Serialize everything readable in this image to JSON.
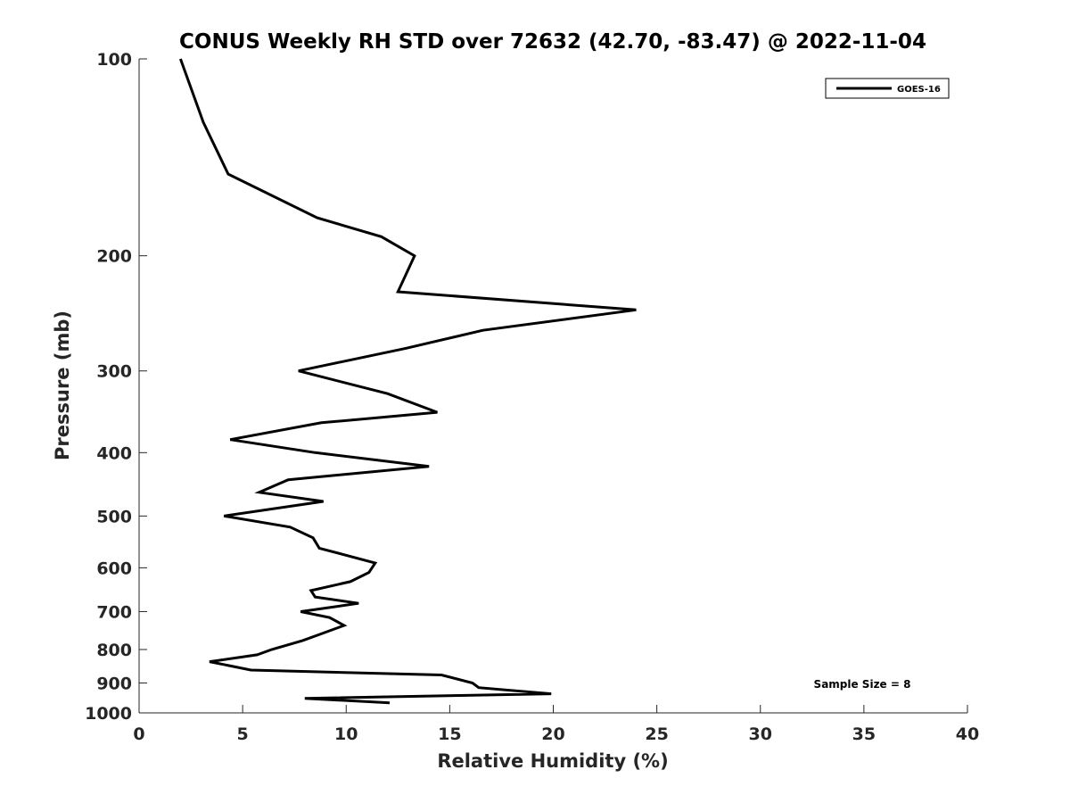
{
  "chart_data": {
    "type": "line",
    "title": "CONUS Weekly RH STD over 72632 (42.70, -83.47) @ 2022-11-04",
    "xlabel": "Relative Humidity (%)",
    "ylabel": "Pressure (mb)",
    "xlim": [
      0,
      40
    ],
    "ylim": [
      100,
      1000
    ],
    "yscale": "log",
    "y_reversed": true,
    "grid": false,
    "xticks": [
      0,
      5,
      10,
      15,
      20,
      25,
      30,
      35,
      40
    ],
    "yticks": [
      100,
      200,
      300,
      400,
      500,
      600,
      700,
      800,
      900,
      1000
    ],
    "legend": {
      "position": "top-right",
      "entries": [
        "GOES-16"
      ]
    },
    "annotation": "Sample Size = 8",
    "series": [
      {
        "name": "GOES-16",
        "color": "#000000",
        "points": [
          [
            2.0,
            100
          ],
          [
            3.1,
            125
          ],
          [
            4.3,
            150
          ],
          [
            8.6,
            175
          ],
          [
            11.7,
            187
          ],
          [
            13.3,
            200
          ],
          [
            12.5,
            227
          ],
          [
            24.0,
            242
          ],
          [
            16.6,
            260
          ],
          [
            12.9,
            277
          ],
          [
            7.7,
            300
          ],
          [
            12.0,
            325
          ],
          [
            14.4,
            347
          ],
          [
            8.8,
            360
          ],
          [
            4.4,
            382
          ],
          [
            8.5,
            400
          ],
          [
            14.0,
            420
          ],
          [
            7.2,
            440
          ],
          [
            5.8,
            460
          ],
          [
            8.9,
            475
          ],
          [
            4.1,
            500
          ],
          [
            7.3,
            520
          ],
          [
            8.4,
            540
          ],
          [
            8.7,
            560
          ],
          [
            11.4,
            590
          ],
          [
            11.1,
            610
          ],
          [
            10.2,
            630
          ],
          [
            8.3,
            650
          ],
          [
            8.5,
            665
          ],
          [
            10.6,
            680
          ],
          [
            7.8,
            700
          ],
          [
            9.2,
            715
          ],
          [
            9.9,
            735
          ],
          [
            8.9,
            755
          ],
          [
            7.9,
            775
          ],
          [
            6.4,
            800
          ],
          [
            5.7,
            815
          ],
          [
            3.4,
            835
          ],
          [
            5.4,
            860
          ],
          [
            14.6,
            875
          ],
          [
            16.1,
            900
          ],
          [
            16.4,
            915
          ],
          [
            19.9,
            935
          ],
          [
            8.0,
            950
          ],
          [
            12.1,
            965
          ]
        ]
      }
    ]
  }
}
